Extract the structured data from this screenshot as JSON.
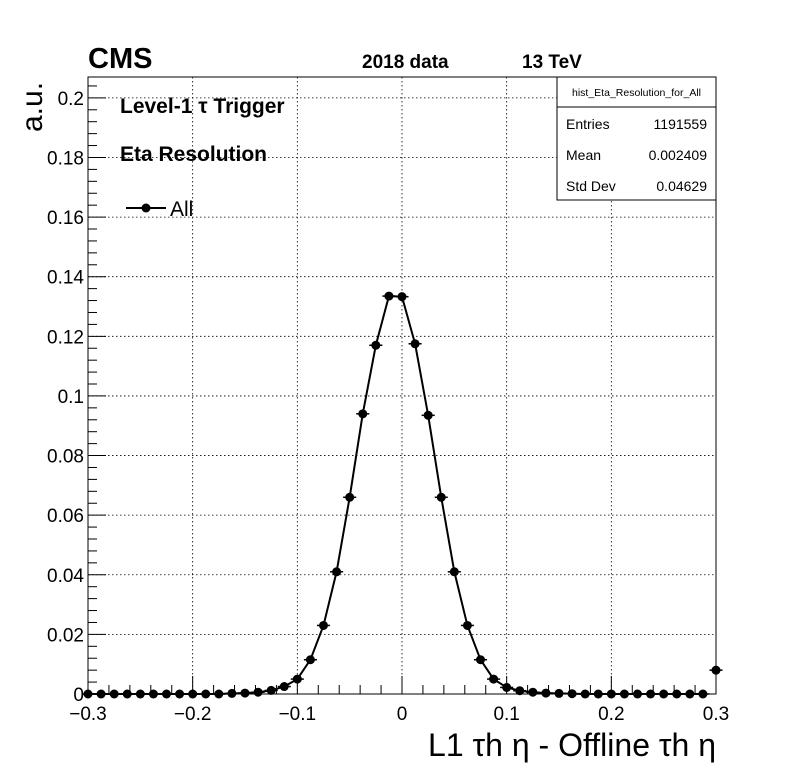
{
  "chart_data": {
    "type": "scatter",
    "experiment": "CMS",
    "dataset": "2018 data",
    "energy": "13 TeV",
    "annotations": [
      "Level-1 τ Trigger",
      "Eta Resolution"
    ],
    "xlabel": "L1 τh η - Offline τh η",
    "ylabel": "a.u.",
    "xlim": [
      -0.3,
      0.3
    ],
    "ylim": [
      0,
      0.207
    ],
    "xticks": [
      "−0.3",
      "−0.2",
      "−0.1",
      "0",
      "0.1",
      "0.2",
      "0.3"
    ],
    "yticks": [
      "0",
      "0.02",
      "0.04",
      "0.06",
      "0.08",
      "0.1",
      "0.12",
      "0.14",
      "0.16",
      "0.18",
      "0.2"
    ],
    "grid": true,
    "legend_position": "top-left",
    "stats_box": {
      "title": "hist_Eta_Resolution_for_All",
      "rows": [
        {
          "label": "Entries",
          "value": "1191559"
        },
        {
          "label": "Mean",
          "value": "0.002409"
        },
        {
          "label": "Std Dev",
          "value": "0.04629"
        }
      ]
    },
    "series": [
      {
        "name": "All",
        "color": "#000000",
        "x": [
          -0.3,
          -0.2875,
          -0.275,
          -0.2625,
          -0.25,
          -0.2375,
          -0.225,
          -0.2125,
          -0.2,
          -0.1875,
          -0.175,
          -0.1625,
          -0.15,
          -0.1375,
          -0.125,
          -0.1125,
          -0.1,
          -0.0875,
          -0.075,
          -0.0625,
          -0.05,
          -0.0375,
          -0.025,
          -0.0125,
          0,
          0.0125,
          0.025,
          0.0375,
          0.05,
          0.0625,
          0.075,
          0.0875,
          0.1,
          0.1125,
          0.125,
          0.1375,
          0.15,
          0.1625,
          0.175,
          0.1875,
          0.2,
          0.2125,
          0.225,
          0.2375,
          0.25,
          0.2625,
          0.275,
          0.2875,
          0.3
        ],
        "y": [
          0.0,
          0.0,
          0.0,
          0.0,
          0.0,
          0.0,
          0.0,
          0.0,
          0.0,
          0.0,
          0.0,
          0.0002,
          0.0003,
          0.0006,
          0.0012,
          0.0025,
          0.005,
          0.0115,
          0.023,
          0.041,
          0.066,
          0.094,
          0.117,
          0.1335,
          0.1333,
          0.1175,
          0.0935,
          0.066,
          0.041,
          0.023,
          0.0115,
          0.005,
          0.0022,
          0.0011,
          0.0006,
          0.0003,
          0.0002,
          0.0001,
          0.0,
          0.0,
          0.0,
          0.0,
          0.0,
          0.0,
          0.0,
          0.0,
          0.0,
          0.0,
          0.008
        ]
      }
    ]
  }
}
